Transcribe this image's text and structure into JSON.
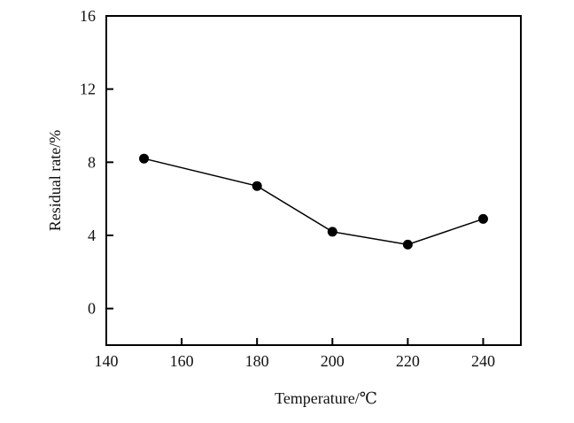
{
  "chart_data": {
    "type": "line",
    "title": "",
    "xlabel": "Temperature/℃",
    "ylabel": "Residual rate/%",
    "xlim": [
      140,
      250
    ],
    "ylim": [
      -2,
      16
    ],
    "xticks": [
      140,
      160,
      180,
      200,
      220,
      240
    ],
    "yticks": [
      0,
      4,
      8,
      12,
      16
    ],
    "grid": false,
    "series": [
      {
        "name": "Residual rate",
        "x": [
          150,
          180,
          200,
          220,
          240
        ],
        "y": [
          8.2,
          6.7,
          4.2,
          3.5,
          4.9
        ],
        "color": "#000000",
        "marker": "circle"
      }
    ]
  }
}
